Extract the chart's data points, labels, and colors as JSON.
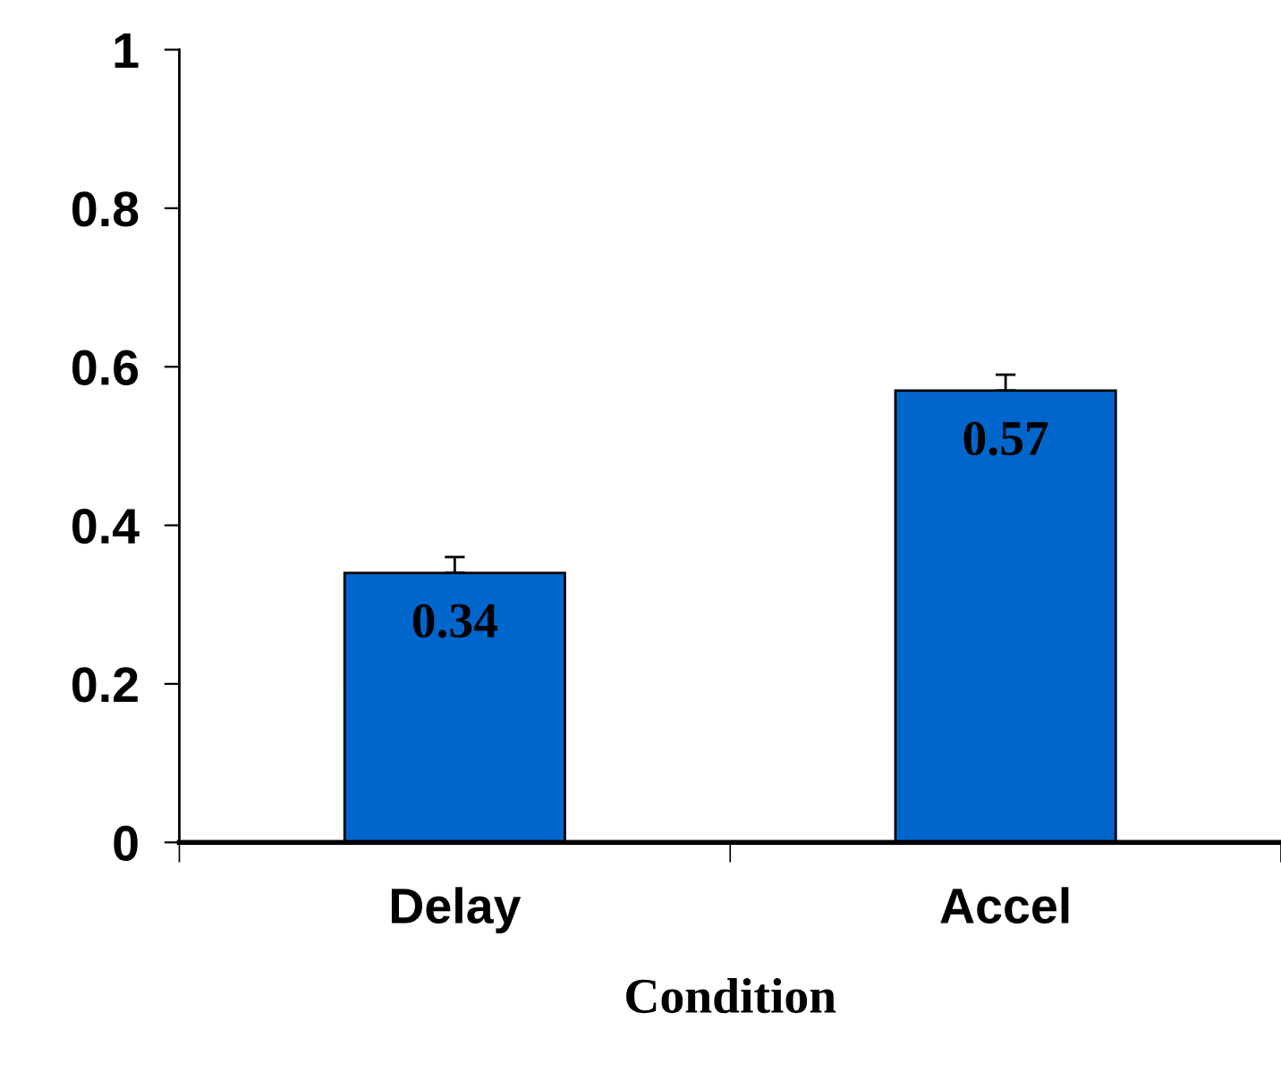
{
  "chart_data": {
    "type": "bar",
    "xlabel": "Condition",
    "categories": [
      "Delay",
      "Accel"
    ],
    "values": [
      0.34,
      0.57
    ],
    "errors": [
      [
        0.34,
        0.36
      ],
      [
        0.57,
        0.59
      ]
    ],
    "color": "#0066cc",
    "data_labels": true,
    "ylim": [
      0,
      1
    ],
    "yticks": [
      0,
      0.2,
      0.4,
      0.6,
      0.8,
      1
    ],
    "grid": false
  }
}
